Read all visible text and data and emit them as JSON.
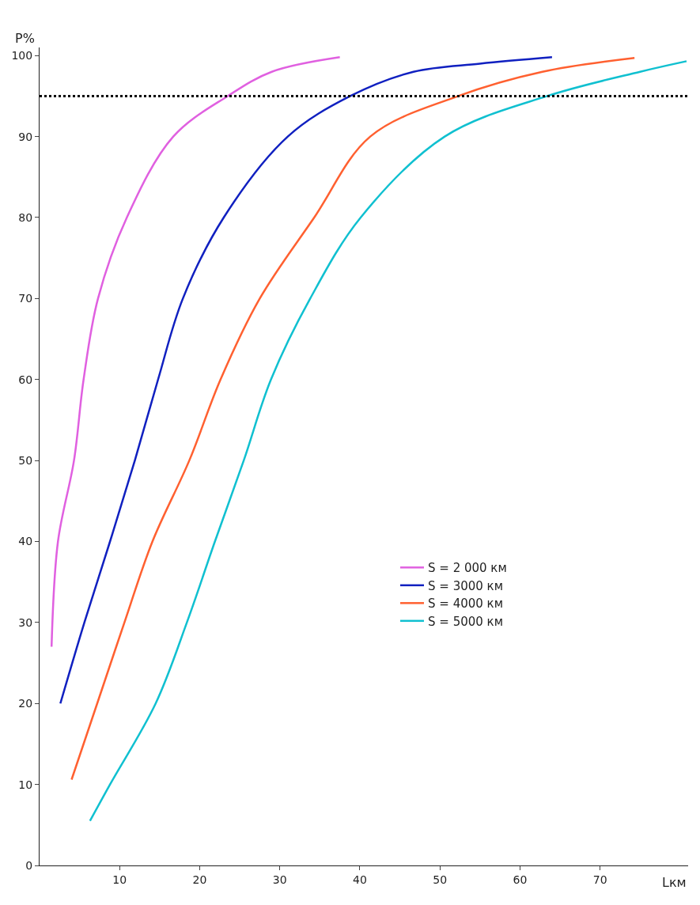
{
  "chart_data": {
    "type": "line",
    "xlabel": "Lкм",
    "ylabel": "P%",
    "xlim": [
      0,
      81
    ],
    "ylim": [
      0,
      101
    ],
    "xticks": [
      10,
      20,
      30,
      40,
      50,
      60,
      70
    ],
    "yticks": [
      0,
      10,
      20,
      30,
      40,
      50,
      60,
      70,
      80,
      90,
      100
    ],
    "grid": false,
    "legend": "right",
    "line_style": "solid",
    "marker": "none",
    "ref_lines": [
      {
        "axis": "y",
        "value": 95,
        "color": "#000000",
        "line_style": "dotted"
      }
    ],
    "series": [
      {
        "name": "S = 2 000 км",
        "color": "#e060e0",
        "x": [
          1.5,
          2.3,
          4.3,
          5.5,
          7.3,
          10.9,
          16.7,
          23.5,
          29,
          37.5
        ],
        "values": [
          27,
          40,
          50,
          60,
          70,
          80,
          90,
          95,
          98,
          99.8
        ]
      },
      {
        "name": "S = 3000 км",
        "color": "#1020c0",
        "x": [
          2.6,
          5.6,
          8.8,
          11.9,
          14.8,
          17.9,
          23,
          31,
          38.8,
          46.7,
          55,
          64
        ],
        "values": [
          20,
          30,
          40,
          50,
          60,
          70,
          80,
          90,
          95,
          98,
          99,
          99.8
        ]
      },
      {
        "name": "S = 4000 км",
        "color": "#ff6030",
        "x": [
          4,
          7.2,
          10.6,
          14.1,
          18.7,
          22.6,
          27.5,
          34.3,
          41.3,
          52.3,
          62.8,
          74.3
        ],
        "values": [
          10.6,
          20,
          30,
          40,
          50,
          60,
          70,
          80,
          90,
          95,
          98,
          99.7
        ]
      },
      {
        "name": "S = 5000 км",
        "color": "#10c0d0",
        "x": [
          6.3,
          8.8,
          14.5,
          18.4,
          21.9,
          25.5,
          28.9,
          33.8,
          40.1,
          50.6,
          63.4,
          75,
          80.8
        ],
        "values": [
          5.5,
          10,
          20,
          30,
          40,
          50,
          60,
          70,
          80,
          90,
          95,
          98,
          99.3
        ]
      }
    ]
  }
}
